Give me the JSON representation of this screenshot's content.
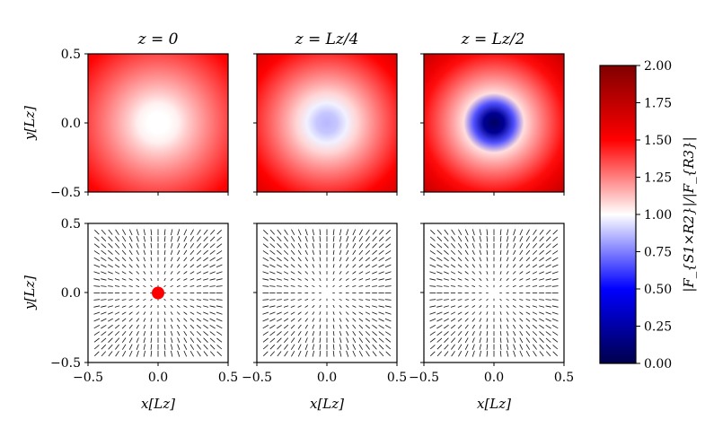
{
  "chart_data": [
    {
      "type": "heatmap",
      "panel": "top-left",
      "title": "z = 0",
      "xlabel": "",
      "ylabel": "y[Lz]",
      "xlim": [
        -0.5,
        0.5
      ],
      "ylim": [
        -0.5,
        0.5
      ],
      "yticks": [
        "0.5",
        "0.0",
        "−0.5"
      ],
      "ratio_min": 1.0,
      "ratio_max": 1.55,
      "dip_min": 1.0,
      "dip_radius": 0.12
    },
    {
      "type": "heatmap",
      "panel": "top-middle",
      "title": "z = Lz/4",
      "xlim": [
        -0.5,
        0.5
      ],
      "ylim": [
        -0.5,
        0.5
      ],
      "ratio_min": 0.85,
      "ratio_max": 1.65,
      "dip_min": 0.86,
      "dip_radius": 0.16
    },
    {
      "type": "heatmap",
      "panel": "top-right",
      "title": "z = Lz/2",
      "xlim": [
        -0.5,
        0.5
      ],
      "ylim": [
        -0.5,
        0.5
      ],
      "ratio_min": 0.05,
      "ratio_max": 1.75,
      "dip_min": 0.05,
      "dip_radius": 0.18
    },
    {
      "type": "quiver",
      "panel": "bottom-left",
      "xlabel": "x[Lz]",
      "ylabel": "y[Lz]",
      "xlim": [
        -0.5,
        0.5
      ],
      "ylim": [
        -0.5,
        0.5
      ],
      "xticks": [
        "−0.5",
        "0.0",
        "0.5"
      ],
      "yticks": [
        "0.5",
        "0.0",
        "−0.5"
      ],
      "grid_n": 19,
      "marker": {
        "x": 0.0,
        "y": 0.0,
        "color": "#ff0000"
      }
    },
    {
      "type": "quiver",
      "panel": "bottom-middle",
      "xlabel": "x[Lz]",
      "xlim": [
        -0.5,
        0.5
      ],
      "ylim": [
        -0.5,
        0.5
      ],
      "xticks": [
        "−0.5",
        "0.0",
        "0.5"
      ],
      "grid_n": 19
    },
    {
      "type": "quiver",
      "panel": "bottom-right",
      "xlabel": "x[Lz]",
      "xlim": [
        -0.5,
        0.5
      ],
      "ylim": [
        -0.5,
        0.5
      ],
      "xticks": [
        "−0.5",
        "0.0",
        "0.5"
      ],
      "grid_n": 19
    }
  ],
  "colorbar": {
    "label": "|F_{S1×R2}|/|F_{R3}|",
    "range": [
      0.0,
      2.0
    ],
    "ticks": [
      "2.00",
      "1.75",
      "1.50",
      "1.25",
      "1.00",
      "0.75",
      "0.50",
      "0.25",
      "0.00"
    ],
    "colormap": "seismic",
    "colors": {
      "low": "#00004c",
      "mid": "#ffffff",
      "high": "#800000"
    }
  }
}
